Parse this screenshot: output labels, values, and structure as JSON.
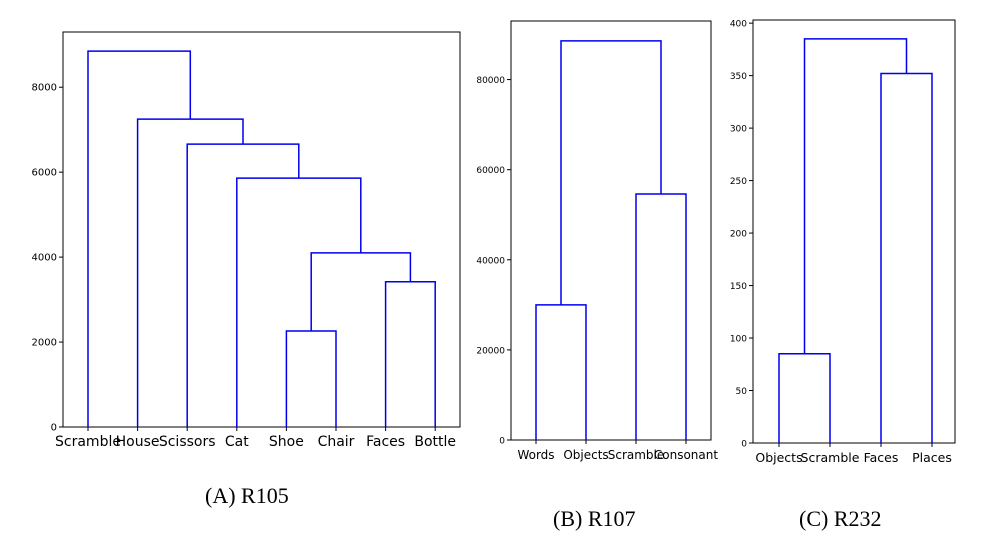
{
  "chart_data": [
    {
      "type": "dendrogram",
      "caption": "(A) R105",
      "leaves": [
        "Scramble",
        "House",
        "Scissors",
        "Cat",
        "Shoe",
        "Chair",
        "Faces",
        "Bottle"
      ],
      "ylim": [
        0,
        9300
      ],
      "yticks": [
        0,
        2000,
        4000,
        6000,
        8000
      ],
      "links": [
        {
          "left": "Shoe",
          "right": "Chair",
          "height": 2260
        },
        {
          "left": "Faces",
          "right": "Bottle",
          "height": 3420
        },
        {
          "left": "Shoe+Chair",
          "right": "Faces+Bottle",
          "height": 4100
        },
        {
          "left": "Cat",
          "right": "Shoe+Chair+Faces+Bottle",
          "height": 5860
        },
        {
          "left": "Scissors",
          "right": "Cat+Shoe+Chair+Faces+Bottle",
          "height": 6660
        },
        {
          "left": "House",
          "right": "Scissors+Cat+Shoe+Chair+Faces+Bottle",
          "height": 7250
        },
        {
          "left": "Scramble",
          "right": "House+Scissors+Cat+Shoe+Chair+Faces+Bottle",
          "height": 8850
        }
      ]
    },
    {
      "type": "dendrogram",
      "caption": "(B) R107",
      "leaves": [
        "Words",
        "Objects",
        "Scramble",
        "Consonant"
      ],
      "ylim": [
        0,
        93000
      ],
      "yticks": [
        0,
        20000,
        40000,
        60000,
        80000
      ],
      "links": [
        {
          "left": "Words",
          "right": "Objects",
          "height": 30000
        },
        {
          "left": "Scramble",
          "right": "Consonant",
          "height": 54600
        },
        {
          "left": "Words+Objects",
          "right": "Scramble+Consonant",
          "height": 88600
        }
      ]
    },
    {
      "type": "dendrogram",
      "caption": "(C) R232",
      "leaves": [
        "Objects",
        "Scramble",
        "Faces",
        "Places"
      ],
      "ylim": [
        0,
        403
      ],
      "yticks": [
        0,
        50,
        100,
        150,
        200,
        250,
        300,
        350,
        400
      ],
      "links": [
        {
          "left": "Objects",
          "right": "Scramble",
          "height": 85
        },
        {
          "left": "Faces",
          "right": "Places",
          "height": 352
        },
        {
          "left": "Objects+Scramble",
          "right": "Faces+Places",
          "height": 385
        }
      ]
    }
  ],
  "colors": {
    "link": "#0000ee",
    "axis": "#000000",
    "background": "#ffffff"
  }
}
